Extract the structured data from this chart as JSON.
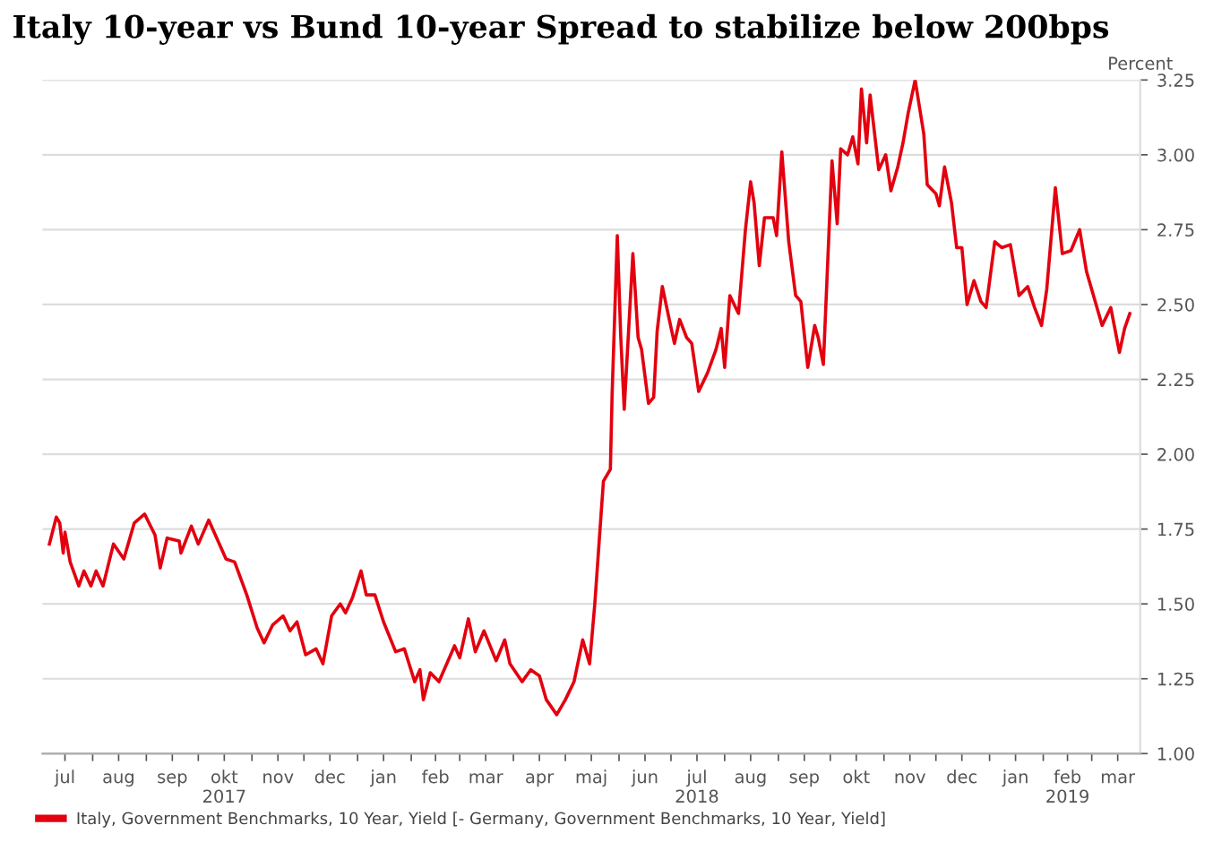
{
  "chart_data": {
    "type": "line",
    "title": "Italy 10-year vs Bund 10-year Spread to stabilize below 200bps",
    "ylabel": "Percent",
    "x": [
      "2017-07-07",
      "2017-07-11",
      "2017-07-13",
      "2017-07-15",
      "2017-07-16",
      "2017-07-19",
      "2017-07-24",
      "2017-07-27",
      "2017-07-31",
      "2017-08-03",
      "2017-08-07",
      "2017-08-13",
      "2017-08-19",
      "2017-08-25",
      "2017-08-31",
      "2017-09-06",
      "2017-09-09",
      "2017-09-13",
      "2017-09-20",
      "2017-09-21",
      "2017-09-27",
      "2017-10-01",
      "2017-10-07",
      "2017-10-17",
      "2017-10-22",
      "2017-10-29",
      "2017-11-04",
      "2017-11-08",
      "2017-11-13",
      "2017-11-19",
      "2017-11-23",
      "2017-11-27",
      "2017-12-02",
      "2017-12-08",
      "2017-12-12",
      "2017-12-17",
      "2017-12-22",
      "2017-12-25",
      "2017-12-29",
      "2018-01-03",
      "2018-01-06",
      "2018-01-11",
      "2018-01-16",
      "2018-01-23",
      "2018-01-28",
      "2018-02-03",
      "2018-02-06",
      "2018-02-08",
      "2018-02-12",
      "2018-02-17",
      "2018-02-26",
      "2018-03-01",
      "2018-03-06",
      "2018-03-10",
      "2018-03-15",
      "2018-03-22",
      "2018-03-27",
      "2018-03-30",
      "2018-04-06",
      "2018-04-11",
      "2018-04-16",
      "2018-04-20",
      "2018-04-26",
      "2018-05-01",
      "2018-05-06",
      "2018-05-11",
      "2018-05-15",
      "2018-05-18",
      "2018-05-22",
      "2018-05-23",
      "2018-05-27",
      "2018-05-28",
      "2018-05-31",
      "2018-06-02",
      "2018-06-04",
      "2018-06-09",
      "2018-06-12",
      "2018-06-14",
      "2018-06-18",
      "2018-06-21",
      "2018-06-23",
      "2018-06-26",
      "2018-06-30",
      "2018-07-03",
      "2018-07-06",
      "2018-07-10",
      "2018-07-13",
      "2018-07-17",
      "2018-07-22",
      "2018-07-27",
      "2018-07-30",
      "2018-08-01",
      "2018-08-04",
      "2018-08-09",
      "2018-08-13",
      "2018-08-16",
      "2018-08-18",
      "2018-08-21",
      "2018-08-24",
      "2018-08-29",
      "2018-08-31",
      "2018-09-03",
      "2018-09-07",
      "2018-09-11",
      "2018-09-14",
      "2018-09-18",
      "2018-09-22",
      "2018-09-24",
      "2018-09-27",
      "2018-10-02",
      "2018-10-05",
      "2018-10-07",
      "2018-10-11",
      "2018-10-14",
      "2018-10-17",
      "2018-10-19",
      "2018-10-22",
      "2018-10-24",
      "2018-10-29",
      "2018-11-02",
      "2018-11-05",
      "2018-11-09",
      "2018-11-12",
      "2018-11-15",
      "2018-11-19",
      "2018-11-24",
      "2018-11-26",
      "2018-12-01",
      "2018-12-03",
      "2018-12-06",
      "2018-12-10",
      "2018-12-13",
      "2018-12-16",
      "2018-12-19",
      "2018-12-23",
      "2018-12-27",
      "2018-12-30",
      "2019-01-04",
      "2019-01-08",
      "2019-01-13",
      "2019-01-18",
      "2019-01-23",
      "2019-01-27",
      "2019-01-31",
      "2019-02-03",
      "2019-02-08",
      "2019-02-12",
      "2019-02-17",
      "2019-02-22",
      "2019-02-26",
      "2019-03-01",
      "2019-03-07",
      "2019-03-12",
      "2019-03-17",
      "2019-03-20",
      "2019-03-23"
    ],
    "series": [
      {
        "name": "Italy, Government Benchmarks, 10 Year, Yield [- Germany, Government Benchmarks, 10 Year, Yield]",
        "color": "#e3000f",
        "values": [
          1.7,
          1.79,
          1.77,
          1.67,
          1.74,
          1.64,
          1.56,
          1.61,
          1.56,
          1.61,
          1.56,
          1.7,
          1.65,
          1.77,
          1.8,
          1.73,
          1.62,
          1.72,
          1.71,
          1.67,
          1.76,
          1.7,
          1.78,
          1.65,
          1.64,
          1.53,
          1.42,
          1.37,
          1.43,
          1.46,
          1.41,
          1.44,
          1.33,
          1.35,
          1.3,
          1.46,
          1.5,
          1.47,
          1.52,
          1.61,
          1.53,
          1.53,
          1.44,
          1.34,
          1.35,
          1.24,
          1.28,
          1.18,
          1.27,
          1.24,
          1.36,
          1.32,
          1.45,
          1.34,
          1.41,
          1.31,
          1.38,
          1.3,
          1.24,
          1.28,
          1.26,
          1.18,
          1.13,
          1.18,
          1.24,
          1.38,
          1.3,
          1.5,
          1.83,
          1.91,
          1.95,
          2.2,
          2.73,
          2.39,
          2.15,
          2.67,
          2.39,
          2.35,
          2.17,
          2.19,
          2.41,
          2.56,
          2.45,
          2.37,
          2.45,
          2.39,
          2.37,
          2.21,
          2.27,
          2.35,
          2.42,
          2.29,
          2.53,
          2.47,
          2.75,
          2.91,
          2.84,
          2.63,
          2.79,
          2.79,
          2.73,
          3.01,
          2.71,
          2.53,
          2.51,
          2.29,
          2.43,
          2.39,
          2.3,
          2.98,
          2.77,
          3.02,
          3.0,
          3.06,
          2.97,
          3.22,
          3.04,
          3.2,
          2.95,
          3.0,
          2.88,
          2.96,
          3.04,
          3.14,
          3.25,
          3.07,
          2.9,
          2.87,
          2.83,
          2.96,
          2.84,
          2.69,
          2.69,
          2.5,
          2.58,
          2.51,
          2.49,
          2.71,
          2.69,
          2.7,
          2.53,
          2.56,
          2.49,
          2.43,
          2.55,
          2.89,
          2.67,
          2.68,
          2.75,
          2.61,
          2.55,
          2.43,
          2.49,
          2.34,
          2.42,
          2.47
        ]
      }
    ],
    "xlim": [
      "2017-07-03",
      "2019-03-29"
    ],
    "xticks": [
      {
        "value": "2017-07-16",
        "label": "jul"
      },
      {
        "value": "2017-08-01",
        "label": null
      },
      {
        "value": "2017-08-16",
        "label": "aug"
      },
      {
        "value": "2017-09-01",
        "label": null
      },
      {
        "value": "2017-09-16",
        "label": "sep"
      },
      {
        "value": "2017-10-01",
        "label": null
      },
      {
        "value": "2017-10-16",
        "label": "okt\n2017"
      },
      {
        "value": "2017-11-01",
        "label": null
      },
      {
        "value": "2017-11-16",
        "label": "nov"
      },
      {
        "value": "2017-12-01",
        "label": null
      },
      {
        "value": "2017-12-16",
        "label": "dec"
      },
      {
        "value": "2018-01-01",
        "label": null
      },
      {
        "value": "2018-01-16",
        "label": "jan"
      },
      {
        "value": "2018-02-01",
        "label": null
      },
      {
        "value": "2018-02-15",
        "label": "feb"
      },
      {
        "value": "2018-03-01",
        "label": null
      },
      {
        "value": "2018-03-16",
        "label": "mar"
      },
      {
        "value": "2018-04-01",
        "label": null
      },
      {
        "value": "2018-04-16",
        "label": "apr"
      },
      {
        "value": "2018-05-01",
        "label": null
      },
      {
        "value": "2018-05-16",
        "label": "maj"
      },
      {
        "value": "2018-06-01",
        "label": null
      },
      {
        "value": "2018-06-16",
        "label": "jun"
      },
      {
        "value": "2018-07-01",
        "label": null
      },
      {
        "value": "2018-07-16",
        "label": "jul\n2018"
      },
      {
        "value": "2018-08-01",
        "label": null
      },
      {
        "value": "2018-08-16",
        "label": "aug"
      },
      {
        "value": "2018-09-01",
        "label": null
      },
      {
        "value": "2018-09-16",
        "label": "sep"
      },
      {
        "value": "2018-10-01",
        "label": null
      },
      {
        "value": "2018-10-16",
        "label": "okt"
      },
      {
        "value": "2018-11-01",
        "label": null
      },
      {
        "value": "2018-11-16",
        "label": "nov"
      },
      {
        "value": "2018-12-01",
        "label": null
      },
      {
        "value": "2018-12-16",
        "label": "dec"
      },
      {
        "value": "2019-01-01",
        "label": null
      },
      {
        "value": "2019-01-16",
        "label": "jan"
      },
      {
        "value": "2019-02-01",
        "label": null
      },
      {
        "value": "2019-02-15",
        "label": "feb\n2019"
      },
      {
        "value": "2019-03-01",
        "label": null
      },
      {
        "value": "2019-03-16",
        "label": "mar"
      }
    ],
    "ylim": [
      1.0,
      3.25
    ],
    "yticks": [
      {
        "value": 1.0,
        "label": "1.00"
      },
      {
        "value": 1.25,
        "label": "1.25"
      },
      {
        "value": 1.5,
        "label": "1.50"
      },
      {
        "value": 1.75,
        "label": "1.75"
      },
      {
        "value": 2.0,
        "label": "2.00"
      },
      {
        "value": 2.25,
        "label": "2.25"
      },
      {
        "value": 2.5,
        "label": "2.50"
      },
      {
        "value": 2.75,
        "label": "2.75"
      },
      {
        "value": 3.0,
        "label": "3.00"
      },
      {
        "value": 3.25,
        "label": "3.25"
      }
    ],
    "grid": "y",
    "legend": "bottom left",
    "marker": "none",
    "line_style": "solid"
  }
}
